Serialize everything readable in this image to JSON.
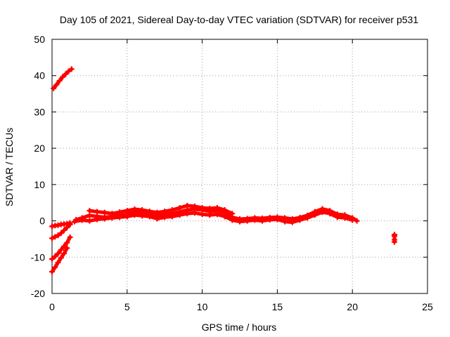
{
  "chart_data": {
    "type": "scatter",
    "title": "Day 105 of 2021, Sidereal Day-to-day VTEC variation (SDTVAR) for receiver p531",
    "xlabel": "GPS time / hours",
    "ylabel": "SDTVAR / TECUs",
    "xlim": [
      0,
      25
    ],
    "ylim": [
      -20,
      50
    ],
    "xticks": [
      0,
      5,
      10,
      15,
      20,
      25
    ],
    "yticks": [
      -20,
      -10,
      0,
      10,
      20,
      30,
      40,
      50
    ],
    "grid": true,
    "marker": "plus",
    "series_color": "#ff0000",
    "segments": [
      {
        "name": "early-high",
        "x": [
          0.1,
          0.3,
          0.5,
          0.7,
          0.9,
          1.1,
          1.3
        ],
        "y": [
          36.5,
          37.5,
          38.6,
          39.6,
          40.4,
          41.2,
          41.8
        ]
      },
      {
        "name": "early-zero",
        "x": [
          0.0,
          0.2,
          0.4,
          0.6,
          0.8,
          1.0,
          1.2
        ],
        "y": [
          -1.5,
          -1.3,
          -1.2,
          -1.0,
          -0.9,
          -0.8,
          -0.6
        ]
      },
      {
        "name": "early-minus5",
        "x": [
          0.0,
          0.2,
          0.4,
          0.6,
          0.8,
          1.0,
          1.2
        ],
        "y": [
          -4.8,
          -4.4,
          -4.0,
          -3.4,
          -2.6,
          -1.8,
          -1.0
        ]
      },
      {
        "name": "early-minus10",
        "x": [
          0.0,
          0.2,
          0.4,
          0.6,
          0.8,
          1.0,
          1.2
        ],
        "y": [
          -10.5,
          -9.8,
          -9.0,
          -8.0,
          -7.0,
          -6.0,
          -4.5
        ]
      },
      {
        "name": "early-minus14",
        "x": [
          0.0,
          0.2,
          0.4,
          0.6,
          0.8,
          1.0
        ],
        "y": [
          -14.0,
          -12.8,
          -11.5,
          -10.2,
          -9.0,
          -7.5
        ]
      },
      {
        "name": "main",
        "x": [
          1.6,
          2.0,
          2.5,
          3.0,
          3.5,
          4.0,
          4.5,
          5.0,
          5.5,
          6.0,
          6.5,
          7.0,
          7.5,
          8.0,
          8.5,
          9.0,
          9.5,
          10.0,
          10.5,
          11.0,
          11.5,
          12.0,
          12.5,
          13.0,
          13.5,
          14.0,
          14.5,
          15.0,
          15.5,
          16.0,
          16.5,
          17.0,
          17.5,
          18.0,
          18.5,
          19.0,
          19.5,
          20.0,
          20.3
        ],
        "y": [
          0.3,
          0.8,
          1.5,
          1.2,
          1.0,
          1.2,
          1.5,
          1.8,
          2.5,
          2.3,
          2.0,
          1.5,
          1.8,
          2.0,
          2.5,
          3.0,
          3.2,
          3.0,
          2.6,
          2.8,
          2.2,
          1.0,
          0.5,
          0.6,
          0.8,
          0.7,
          0.9,
          1.0,
          0.8,
          0.5,
          0.9,
          1.5,
          2.5,
          3.3,
          2.8,
          1.8,
          1.6,
          0.8,
          0.0
        ]
      },
      {
        "name": "main-upper",
        "x": [
          2.5,
          3.0,
          3.5,
          4.0,
          4.5,
          5.0,
          5.5,
          6.0,
          6.5,
          7.0,
          7.5,
          8.0,
          8.5,
          9.0,
          9.5,
          10.0,
          10.5,
          11.0,
          11.5,
          12.0
        ],
        "y": [
          2.8,
          2.5,
          2.3,
          2.0,
          2.4,
          2.8,
          3.2,
          3.0,
          2.6,
          2.3,
          2.6,
          3.0,
          3.6,
          4.2,
          4.0,
          3.6,
          3.4,
          3.6,
          3.0,
          2.0
        ]
      },
      {
        "name": "main-lower",
        "x": [
          1.5,
          2.0,
          2.5,
          3.0,
          3.5,
          4.0,
          4.5,
          5.0,
          5.5,
          6.0,
          6.5,
          7.0,
          7.5,
          8.0,
          8.5,
          9.0,
          9.5,
          10.0,
          10.5,
          11.0,
          11.5,
          12.0,
          12.5,
          13.0,
          13.5,
          14.0,
          14.5,
          15.0,
          15.5,
          16.0,
          16.5,
          17.0,
          17.5,
          18.0,
          18.5,
          19.0,
          19.5,
          20.0
        ],
        "y": [
          -0.2,
          0.2,
          0.0,
          0.4,
          0.6,
          0.8,
          1.0,
          1.2,
          1.6,
          1.4,
          1.2,
          0.6,
          1.0,
          1.2,
          1.6,
          2.0,
          2.2,
          1.8,
          1.6,
          1.8,
          1.2,
          0.2,
          -0.2,
          0.0,
          0.2,
          0.0,
          0.3,
          0.4,
          -0.2,
          -0.4,
          0.2,
          0.8,
          1.6,
          2.4,
          2.0,
          1.0,
          0.8,
          0.2
        ]
      },
      {
        "name": "late",
        "x": [
          22.8,
          22.8,
          22.8,
          22.8
        ],
        "y": [
          -3.8,
          -4.2,
          -5.2,
          -5.8
        ]
      }
    ]
  }
}
